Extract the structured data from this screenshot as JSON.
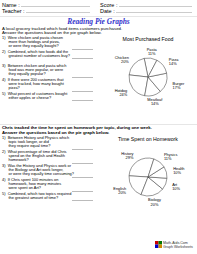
{
  "chart_data": [
    {
      "type": "pie",
      "title": "Most Purchased Food",
      "categories": [
        "Pasta",
        "Chicken",
        "Hotdog",
        "Meatloaf",
        "Burger",
        "Pizza"
      ],
      "values": [
        11,
        20,
        24,
        14,
        17,
        14
      ],
      "value_labels": [
        "11%",
        "20%",
        "24%",
        "14%",
        "17%",
        "14%"
      ],
      "data_labels": true,
      "colors": [
        "#ffffff",
        "#ffffff",
        "#ffffff",
        "#ffffff",
        "#ffffff",
        "#ffffff"
      ],
      "annotations": [
        "Name :",
        "Score :",
        "Teacher :",
        "Date :",
        "Reading Pie Graphs",
        "A local grocery tracked which food items customers purchased.",
        "Answer the questions based on the pie graph below.",
        "1)  Were chicken and pasta chosen\n      more than hotdogs and pizza,\n      or were they equally bought?",
        "2)  Combined, which two foods did the\n      greatest number of customers buy?",
        "3)  Between chicken and pasta which\n      food was more popular, or were\n      they equally popular?",
        "4)  If there were 200 customers that\n      were tracked, how many bought\n      pizza?",
        "5)  What percent of customers bought\n      either apples or cheese?",
        "Math-Aids.Com",
        "Graph Worksheets"
      ]
    },
    {
      "type": "pie",
      "title": "Time Spent on Homework",
      "categories": [
        "History",
        "English",
        "Biology",
        "Art",
        "Health",
        "Physics"
      ],
      "values": [
        29,
        20,
        20,
        10,
        10,
        11
      ],
      "value_labels": [
        "29%",
        "20%",
        "20%",
        "10%",
        "10%",
        "11%"
      ],
      "data_labels": true,
      "colors": [
        "#ffffff",
        "#ffffff",
        "#ffffff",
        "#ffffff",
        "#ffffff",
        "#ffffff"
      ],
      "annotations": [
        "Chris tracked the time he spent on homework per topic, during one week.",
        "Answer the questions based on the pie graph below.",
        "1)  Between History and Physics which\n      topic took longer, or did\n      they require equal time?",
        "2)  What percentage of time did Chris\n      spend on the English and Health\n      homework?",
        "3)  Was the History and Physics work or\n      the Biology and Art work longer,\n      or were they equally time consuming?",
        "4)  If Chris spent 100 minutes on\n      homework, how many minutes\n      were spent on Art?",
        "5)  Combined, which two topics required\n      the greatest amount of time?"
      ]
    }
  ]
}
